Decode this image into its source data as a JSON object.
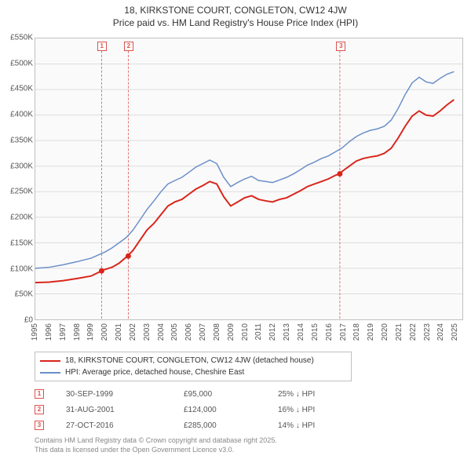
{
  "title_line1": "18, KIRKSTONE COURT, CONGLETON, CW12 4JW",
  "title_line2": "Price paid vs. HM Land Registry's House Price Index (HPI)",
  "title_fontsize": 12,
  "title_color": "#333333",
  "chart": {
    "type": "line",
    "background_color": "#fafafa",
    "grid_color": "#dddddd",
    "plot_border_color": "#c0c0c0",
    "y": {
      "min": 0,
      "max": 550000,
      "tick_step": 50000,
      "labels": [
        "£0",
        "£50K",
        "£100K",
        "£150K",
        "£200K",
        "£250K",
        "£300K",
        "£350K",
        "£400K",
        "£450K",
        "£500K",
        "£550K"
      ],
      "label_fontsize": 10,
      "label_color": "#555555"
    },
    "x": {
      "min": 1995,
      "max": 2025.6,
      "years": [
        1995,
        1996,
        1997,
        1998,
        1999,
        2000,
        2001,
        2002,
        2003,
        2004,
        2005,
        2006,
        2007,
        2008,
        2009,
        2010,
        2011,
        2012,
        2013,
        2014,
        2015,
        2016,
        2017,
        2018,
        2019,
        2020,
        2021,
        2022,
        2023,
        2024,
        2025
      ],
      "label_fontsize": 10,
      "label_color": "#555555"
    },
    "series": [
      {
        "name": "property",
        "label": "18, KIRKSTONE COURT, CONGLETON, CW12 4JW (detached house)",
        "color": "#d9261c",
        "line_width": 2,
        "points": [
          [
            1995,
            72000
          ],
          [
            1996,
            73000
          ],
          [
            1997,
            76000
          ],
          [
            1998,
            80000
          ],
          [
            1999,
            85000
          ],
          [
            1999.75,
            95000
          ],
          [
            2000,
            98000
          ],
          [
            2000.5,
            102000
          ],
          [
            2001,
            110000
          ],
          [
            2001.6,
            124000
          ],
          [
            2002,
            135000
          ],
          [
            2002.5,
            155000
          ],
          [
            2003,
            175000
          ],
          [
            2003.5,
            188000
          ],
          [
            2004,
            205000
          ],
          [
            2004.5,
            222000
          ],
          [
            2005,
            230000
          ],
          [
            2005.5,
            235000
          ],
          [
            2006,
            245000
          ],
          [
            2006.5,
            255000
          ],
          [
            2007,
            262000
          ],
          [
            2007.5,
            270000
          ],
          [
            2008,
            265000
          ],
          [
            2008.5,
            240000
          ],
          [
            2009,
            222000
          ],
          [
            2009.5,
            230000
          ],
          [
            2010,
            238000
          ],
          [
            2010.5,
            242000
          ],
          [
            2011,
            235000
          ],
          [
            2011.5,
            232000
          ],
          [
            2012,
            230000
          ],
          [
            2012.5,
            235000
          ],
          [
            2013,
            238000
          ],
          [
            2013.5,
            245000
          ],
          [
            2014,
            252000
          ],
          [
            2014.5,
            260000
          ],
          [
            2015,
            265000
          ],
          [
            2015.5,
            270000
          ],
          [
            2016,
            275000
          ],
          [
            2016.5,
            282000
          ],
          [
            2016.82,
            285000
          ],
          [
            2017,
            290000
          ],
          [
            2017.5,
            300000
          ],
          [
            2018,
            310000
          ],
          [
            2018.5,
            315000
          ],
          [
            2019,
            318000
          ],
          [
            2019.5,
            320000
          ],
          [
            2020,
            325000
          ],
          [
            2020.5,
            335000
          ],
          [
            2021,
            355000
          ],
          [
            2021.5,
            378000
          ],
          [
            2022,
            398000
          ],
          [
            2022.5,
            408000
          ],
          [
            2023,
            400000
          ],
          [
            2023.5,
            398000
          ],
          [
            2024,
            408000
          ],
          [
            2024.5,
            420000
          ],
          [
            2025,
            430000
          ]
        ]
      },
      {
        "name": "hpi",
        "label": "HPI: Average price, detached house, Cheshire East",
        "color": "#6b8fc9",
        "line_width": 1.5,
        "points": [
          [
            1995,
            100000
          ],
          [
            1996,
            102000
          ],
          [
            1997,
            107000
          ],
          [
            1998,
            113000
          ],
          [
            1999,
            120000
          ],
          [
            2000,
            132000
          ],
          [
            2000.5,
            140000
          ],
          [
            2001,
            150000
          ],
          [
            2001.5,
            160000
          ],
          [
            2002,
            175000
          ],
          [
            2002.5,
            195000
          ],
          [
            2003,
            215000
          ],
          [
            2003.5,
            232000
          ],
          [
            2004,
            250000
          ],
          [
            2004.5,
            265000
          ],
          [
            2005,
            272000
          ],
          [
            2005.5,
            278000
          ],
          [
            2006,
            288000
          ],
          [
            2006.5,
            298000
          ],
          [
            2007,
            305000
          ],
          [
            2007.5,
            312000
          ],
          [
            2008,
            305000
          ],
          [
            2008.5,
            278000
          ],
          [
            2009,
            260000
          ],
          [
            2009.5,
            268000
          ],
          [
            2010,
            275000
          ],
          [
            2010.5,
            280000
          ],
          [
            2011,
            272000
          ],
          [
            2011.5,
            270000
          ],
          [
            2012,
            268000
          ],
          [
            2012.5,
            273000
          ],
          [
            2013,
            278000
          ],
          [
            2013.5,
            285000
          ],
          [
            2014,
            293000
          ],
          [
            2014.5,
            302000
          ],
          [
            2015,
            308000
          ],
          [
            2015.5,
            315000
          ],
          [
            2016,
            320000
          ],
          [
            2016.5,
            328000
          ],
          [
            2017,
            336000
          ],
          [
            2017.5,
            348000
          ],
          [
            2018,
            358000
          ],
          [
            2018.5,
            365000
          ],
          [
            2019,
            370000
          ],
          [
            2019.5,
            373000
          ],
          [
            2020,
            378000
          ],
          [
            2020.5,
            390000
          ],
          [
            2021,
            413000
          ],
          [
            2021.5,
            440000
          ],
          [
            2022,
            463000
          ],
          [
            2022.5,
            474000
          ],
          [
            2023,
            465000
          ],
          [
            2023.5,
            462000
          ],
          [
            2024,
            472000
          ],
          [
            2024.5,
            480000
          ],
          [
            2025,
            485000
          ]
        ]
      }
    ],
    "markers": [
      {
        "id": "1",
        "year": 1999.75,
        "value": 95000
      },
      {
        "id": "2",
        "year": 2001.66,
        "value": 124000
      },
      {
        "id": "3",
        "year": 2016.82,
        "value": 285000
      }
    ],
    "marker_box_border": "#d9534f",
    "marker_box_text_color": "#d9534f"
  },
  "legend": {
    "border_color": "#c0c0c0",
    "fontsize": 10
  },
  "marker_table": {
    "rows": [
      {
        "id": "1",
        "date": "30-SEP-1999",
        "price": "£95,000",
        "diff": "25% ↓ HPI"
      },
      {
        "id": "2",
        "date": "31-AUG-2001",
        "price": "£124,000",
        "diff": "16% ↓ HPI"
      },
      {
        "id": "3",
        "date": "27-OCT-2016",
        "price": "£285,000",
        "diff": "14% ↓ HPI"
      }
    ],
    "fontsize": 10,
    "color": "#555555"
  },
  "footnote_line1": "Contains HM Land Registry data © Crown copyright and database right 2025.",
  "footnote_line2": "This data is licensed under the Open Government Licence v3.0.",
  "footnote_color": "#888888",
  "footnote_fontsize": 9
}
